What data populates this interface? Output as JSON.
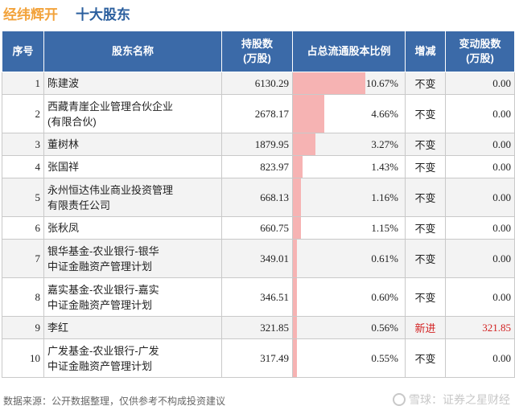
{
  "header": {
    "company": "经纬辉开",
    "title": "十大股东"
  },
  "columns": [
    "序号",
    "股东名称",
    "持股数\n(万股)",
    "占总流通股本比例",
    "增减",
    "变动股数\n(万股)"
  ],
  "rows": [
    {
      "rank": "1",
      "name": "陈建波",
      "shares": "6130.29",
      "ratio": "10.67%",
      "ratio_value": 10.67,
      "change": "不变",
      "delta": "0.00"
    },
    {
      "rank": "2",
      "name": "西藏青崖企业管理合伙企业\n(有限合伙)",
      "shares": "2678.17",
      "ratio": "4.66%",
      "ratio_value": 4.66,
      "change": "不变",
      "delta": "0.00"
    },
    {
      "rank": "3",
      "name": "董树林",
      "shares": "1879.95",
      "ratio": "3.27%",
      "ratio_value": 3.27,
      "change": "不变",
      "delta": "0.00"
    },
    {
      "rank": "4",
      "name": "张国祥",
      "shares": "823.97",
      "ratio": "1.43%",
      "ratio_value": 1.43,
      "change": "不变",
      "delta": "0.00"
    },
    {
      "rank": "5",
      "name": "永州恒达伟业商业投资管理\n有限责任公司",
      "shares": "668.13",
      "ratio": "1.16%",
      "ratio_value": 1.16,
      "change": "不变",
      "delta": "0.00"
    },
    {
      "rank": "6",
      "name": "张秋凤",
      "shares": "660.75",
      "ratio": "1.15%",
      "ratio_value": 1.15,
      "change": "不变",
      "delta": "0.00"
    },
    {
      "rank": "7",
      "name": "银华基金-农业银行-银华\n中证金融资产管理计划",
      "shares": "349.01",
      "ratio": "0.61%",
      "ratio_value": 0.61,
      "change": "不变",
      "delta": "0.00"
    },
    {
      "rank": "8",
      "name": "嘉实基金-农业银行-嘉实\n中证金融资产管理计划",
      "shares": "346.51",
      "ratio": "0.60%",
      "ratio_value": 0.6,
      "change": "不变",
      "delta": "0.00"
    },
    {
      "rank": "9",
      "name": "李红",
      "shares": "321.85",
      "ratio": "0.56%",
      "ratio_value": 0.56,
      "change": "新进",
      "delta": "321.85"
    },
    {
      "rank": "10",
      "name": "广发基金-农业银行-广发\n中证金融资产管理计划",
      "shares": "317.49",
      "ratio": "0.55%",
      "ratio_value": 0.55,
      "change": "不变",
      "delta": "0.00"
    }
  ],
  "footer": {
    "source": "数据来源：公开数据整理，仅供参考不构成投资建议"
  },
  "brand": {
    "text": "雪球：证券之星财经"
  },
  "watermark": {
    "text": "证券之星"
  },
  "colors": {
    "header_bg": "#3b6aa8",
    "company": "#f2a23a",
    "title": "#2b5f9e",
    "bar": "#f6b3b3",
    "new_entry": "#d21f1f"
  }
}
